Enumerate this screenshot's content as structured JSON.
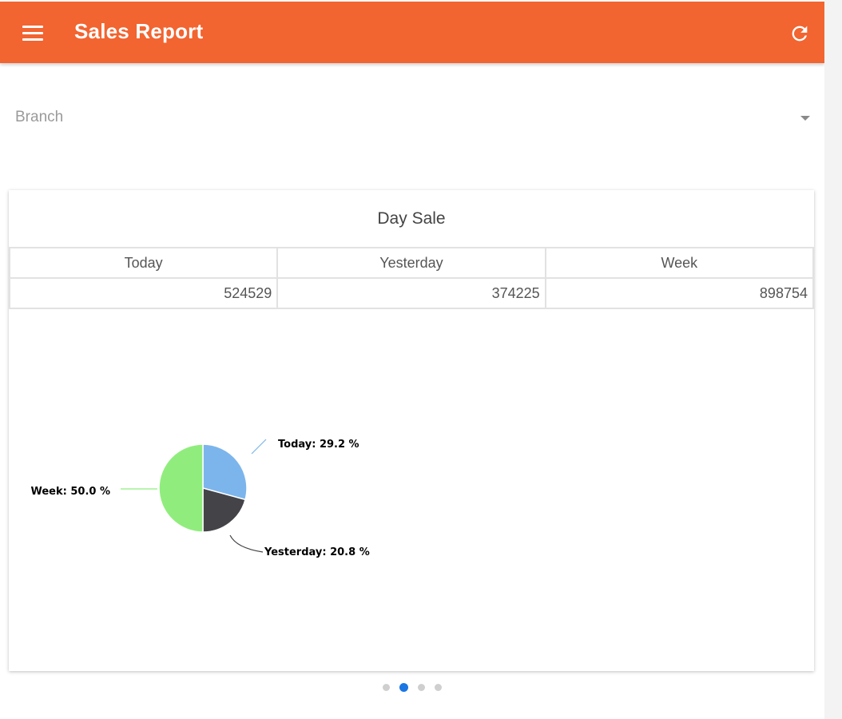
{
  "appbar": {
    "title": "Sales Report",
    "menu_icon": "menu-icon",
    "refresh_icon": "refresh-icon",
    "color": "#f26430"
  },
  "branch": {
    "label": "Branch",
    "caret_icon": "chevron-down-icon"
  },
  "card": {
    "title": "Day Sale",
    "columns": [
      "Today",
      "Yesterday",
      "Week"
    ],
    "values": [
      "524529",
      "374225",
      "898754"
    ]
  },
  "chart_data": {
    "type": "pie",
    "title": "",
    "slices": [
      {
        "name": "Today",
        "value": 29.2,
        "label": "Today: 29.2 %",
        "color": "#7cb5ec"
      },
      {
        "name": "Yesterday",
        "value": 20.8,
        "label": "Yesterday: 20.8 %",
        "color": "#434348"
      },
      {
        "name": "Week",
        "value": 50.0,
        "label": "Week: 50.0 %",
        "color": "#90ed7d"
      }
    ]
  },
  "pager": {
    "count": 4,
    "active_index": 1,
    "active_color": "#1976e3"
  }
}
